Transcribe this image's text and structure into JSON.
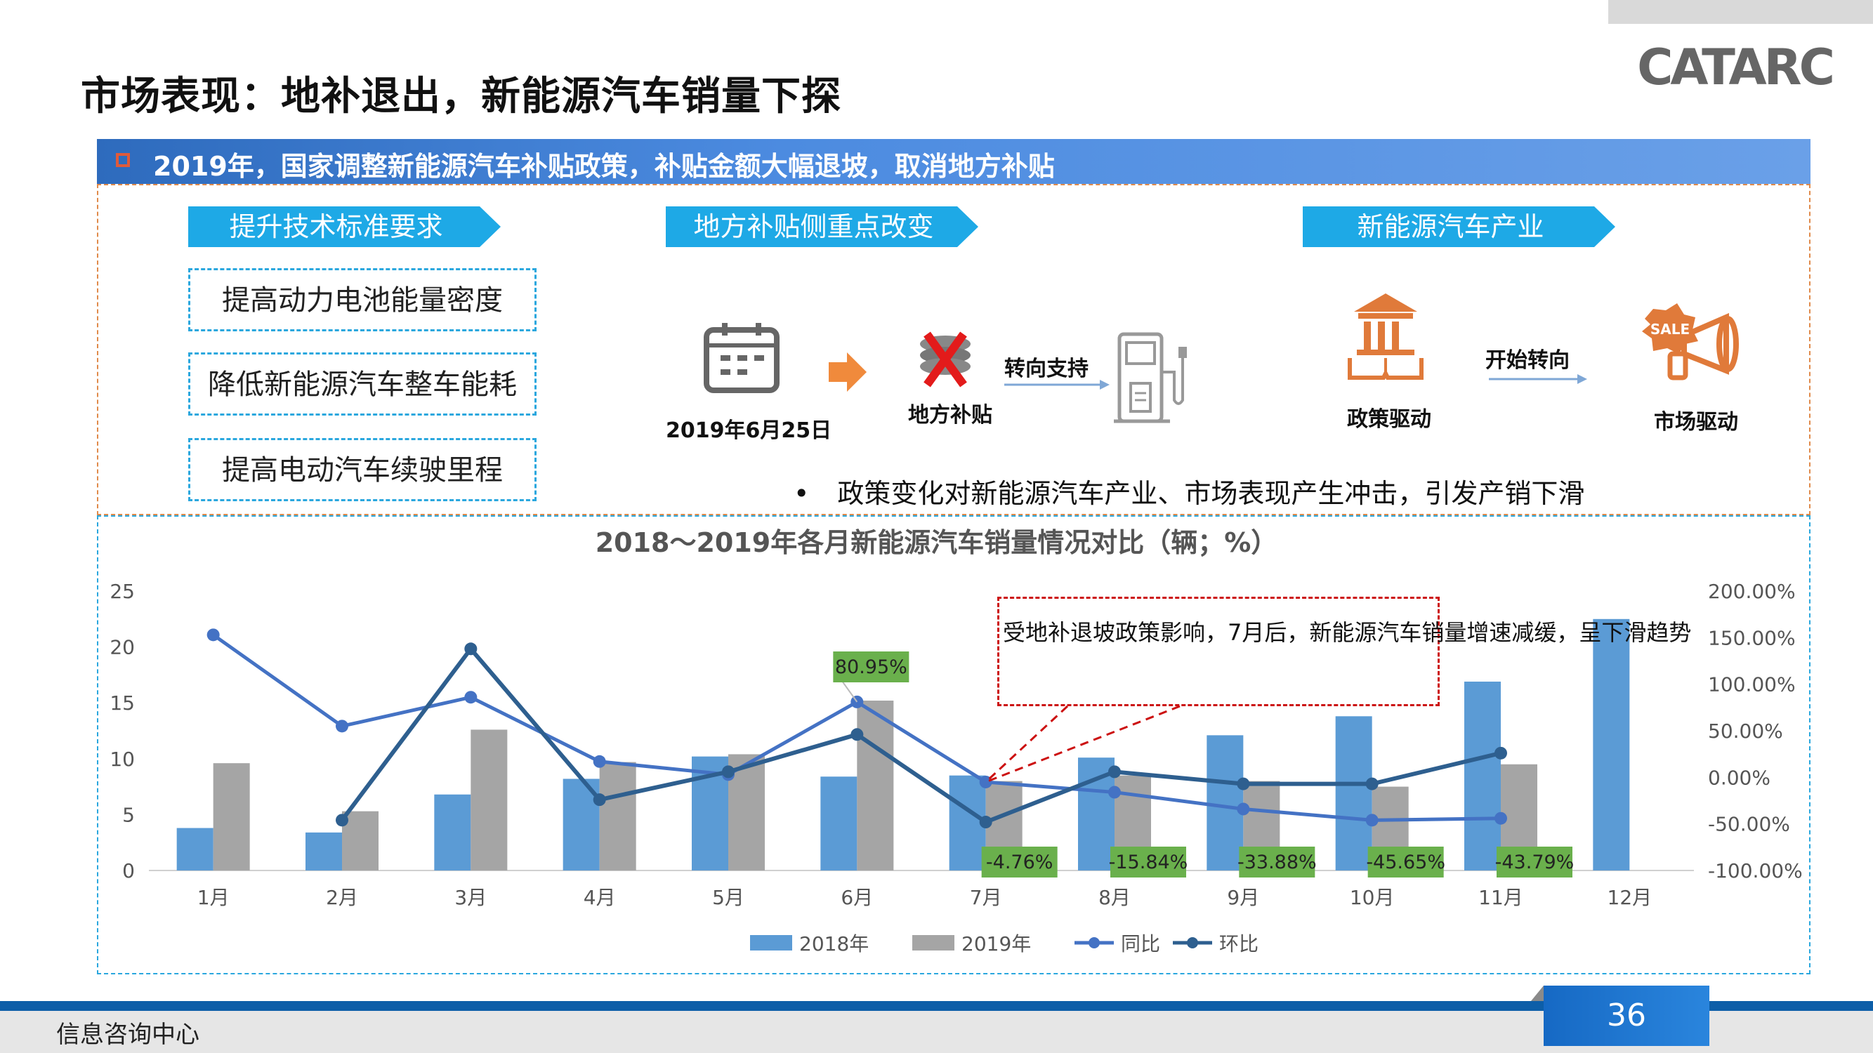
{
  "header": {
    "title": "市场表现：地补退出，新能源汽车销量下探",
    "logo_text": "CATARC"
  },
  "banner": {
    "text": "2019年，国家调整新能源汽车补贴政策，补贴金额大幅退坡，取消地方补贴"
  },
  "section_tech": {
    "label": "提升技术标准要求",
    "items": [
      "提高动力电池能量密度",
      "降低新能源汽车整车能耗",
      "提高电动汽车续驶里程"
    ]
  },
  "section_local": {
    "label": "地方补贴侧重点改变",
    "date": "2019年6月25日",
    "local_subsidy": "地方补贴",
    "turn_support": "转向支持"
  },
  "section_industry": {
    "label": "新能源汽车产业",
    "start_turn": "开始转向",
    "policy_driven": "政策驱动",
    "market_driven": "市场驱动",
    "sale_tag": "SALE"
  },
  "bullet": "政策变化对新能源汽车产业、市场表现产生冲击，引发产销下滑",
  "annotation": "受地补退坡政策影响，7月后，新能源汽车销量增速减缓，呈下滑趋势",
  "chart_data": {
    "type": "bar",
    "title": "2018～2019年各月新能源汽车销量情况对比（辆；%）",
    "categories": [
      "1月",
      "2月",
      "3月",
      "4月",
      "5月",
      "6月",
      "7月",
      "8月",
      "9月",
      "10月",
      "11月",
      "12月"
    ],
    "y_left": {
      "min": 0,
      "max": 25,
      "ticks": [
        "0",
        "5",
        "10",
        "15",
        "20",
        "25"
      ]
    },
    "y_right": {
      "min": -100,
      "max": 200,
      "ticks": [
        "-100.00%",
        "-50.00%",
        "0.00%",
        "50.00%",
        "100.00%",
        "150.00%",
        "200.00%"
      ]
    },
    "bar_series": [
      {
        "name": "2018年",
        "color": "#5b9bd5",
        "values": [
          3.8,
          3.4,
          6.8,
          8.2,
          10.2,
          8.4,
          8.5,
          10.1,
          12.1,
          13.8,
          16.9,
          22.5
        ]
      },
      {
        "name": "2019年",
        "color": "#a5a5a5",
        "values": [
          9.6,
          5.3,
          12.6,
          9.7,
          10.4,
          15.2,
          8.0,
          8.5,
          8.0,
          7.5,
          9.5,
          null
        ]
      }
    ],
    "line_series": [
      {
        "name": "同比",
        "color": "#4472c4",
        "values": [
          153,
          55,
          86,
          17,
          3,
          81,
          -5,
          -16,
          -34,
          -46,
          -44,
          null
        ]
      },
      {
        "name": "环比",
        "color": "#2e5f8f",
        "values": [
          null,
          -46,
          138,
          -24,
          6,
          46,
          -48,
          6,
          -7,
          -7,
          26,
          null
        ]
      }
    ],
    "data_labels": [
      {
        "index": 5,
        "text": "80.95%"
      },
      {
        "index": 6,
        "text": "-4.76%"
      },
      {
        "index": 7,
        "text": "-15.84%"
      },
      {
        "index": 8,
        "text": "-33.88%"
      },
      {
        "index": 9,
        "text": "-45.65%"
      },
      {
        "index": 10,
        "text": "-43.79%"
      }
    ],
    "legend": [
      "2018年",
      "2019年",
      "同比",
      "环比"
    ],
    "legend_position": "bottom"
  },
  "footer": {
    "left_text": "信息咨询中心",
    "page_number": "36"
  }
}
